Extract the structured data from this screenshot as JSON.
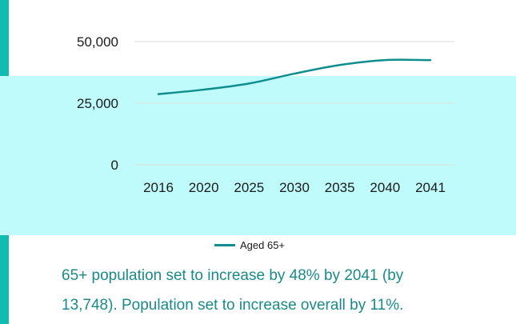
{
  "chart_data": {
    "type": "line",
    "x": [
      "2016",
      "2020",
      "2025",
      "2030",
      "2035",
      "2040",
      "2041"
    ],
    "series": [
      {
        "name": "Aged 65+",
        "values": [
          28700,
          30500,
          33000,
          37000,
          40500,
          42500,
          42500
        ]
      }
    ],
    "y_ticks": [
      0,
      25000,
      50000
    ],
    "y_tick_labels": [
      "0",
      "25,000",
      "50,000"
    ],
    "ylim": [
      0,
      50000
    ],
    "grid": true,
    "legend_position": "bottom",
    "line_color": "#0f8e8e"
  },
  "caption": {
    "line1": "65+ population set to increase by 48% by 2041 (by",
    "line2": "13,748). Population set to increase overall by 11%."
  },
  "colors": {
    "accent_border": "#11bdb1",
    "highlight_band": "#bffbfb",
    "caption_text": "#1a8a8a"
  }
}
